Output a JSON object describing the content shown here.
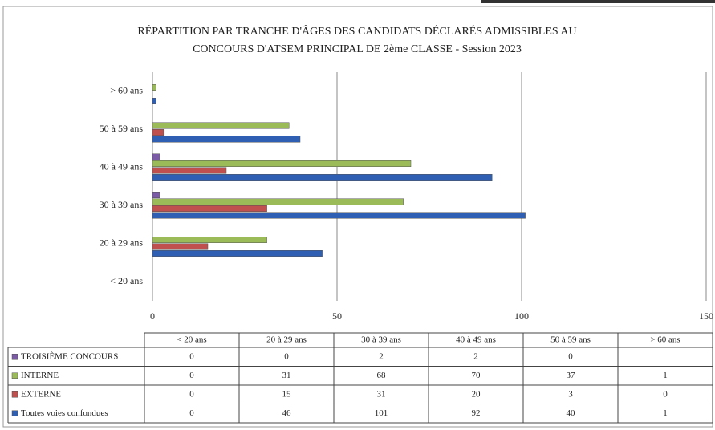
{
  "chart_data": {
    "type": "hbar",
    "title": [
      "RÉPARTITION PAR TRANCHE D'ÂGES DES CANDIDATS DÉCLARÉS ADMISSIBLES AU",
      "CONCOURS D'ATSEM PRINCIPAL DE 2ème CLASSE - Session 2023"
    ],
    "categories": [
      "< 20 ans",
      "20 à 29 ans",
      "30 à 39 ans",
      "40 à 49 ans",
      "50 à 59 ans",
      "> 60 ans"
    ],
    "series": [
      {
        "name": "TROISIÈME CONCOURS",
        "color": "#7b5aa6",
        "values": [
          0,
          0,
          2,
          2,
          0,
          null
        ]
      },
      {
        "name": "INTERNE",
        "color": "#9bbb59",
        "values": [
          0,
          31,
          68,
          70,
          37,
          1
        ]
      },
      {
        "name": "EXTERNE",
        "color": "#c0504d",
        "values": [
          0,
          15,
          31,
          20,
          3,
          0
        ]
      },
      {
        "name": "Toutes voies confondues",
        "color": "#2f5fb3",
        "values": [
          0,
          46,
          101,
          92,
          40,
          1
        ]
      }
    ],
    "xlim": [
      0,
      150
    ],
    "xticks": [
      0,
      50,
      100,
      150
    ],
    "grid": true
  }
}
